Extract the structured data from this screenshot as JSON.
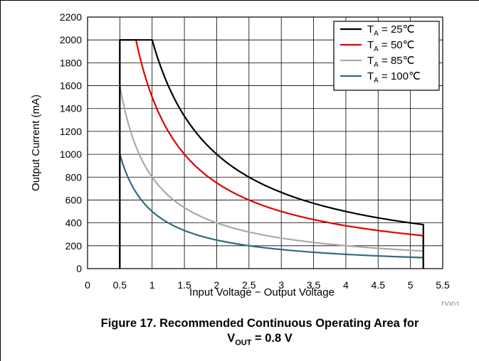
{
  "chart_data": {
    "type": "line",
    "xlabel": "Input Voltage − Output Voltage",
    "ylabel": "Output Current (mA)",
    "xlim": [
      0,
      5.5
    ],
    "ylim": [
      0,
      2200
    ],
    "x_ticks": [
      "0",
      "0.5",
      "1",
      "1.5",
      "2",
      "2.5",
      "3",
      "3.5",
      "4",
      "4.5",
      "5",
      "5.5"
    ],
    "y_ticks": [
      "0",
      "200",
      "400",
      "600",
      "800",
      "1000",
      "1200",
      "1400",
      "1600",
      "1800",
      "2000",
      "2200"
    ],
    "grid": true,
    "legend_position": "top-right",
    "series": [
      {
        "name": "25℃",
        "color": "#000000",
        "x": [
          0.5,
          0.5,
          1.0,
          1.25,
          1.5,
          2.0,
          2.5,
          3.0,
          3.5,
          4.0,
          4.5,
          5.0,
          5.2,
          5.2
        ],
        "y": [
          0,
          2000,
          2000,
          1600,
          1333,
          1000,
          800,
          667,
          571,
          500,
          444,
          400,
          385,
          0
        ]
      },
      {
        "name": "50℃",
        "color": "#e00000",
        "x": [
          0.5,
          0.5,
          0.75,
          1.0,
          1.5,
          2.0,
          2.5,
          3.0,
          3.5,
          4.0,
          4.5,
          5.0,
          5.2,
          5.2
        ],
        "y": [
          0,
          2000,
          2000,
          1500,
          1000,
          750,
          600,
          500,
          429,
          375,
          333,
          300,
          288,
          0
        ]
      },
      {
        "name": "85℃",
        "color": "#aaaaaa",
        "x": [
          0.5,
          0.5,
          0.75,
          1.0,
          1.5,
          2.0,
          2.5,
          3.0,
          3.5,
          4.0,
          4.5,
          5.0,
          5.2,
          5.2
        ],
        "y": [
          0,
          1600,
          1067,
          800,
          533,
          400,
          320,
          267,
          229,
          200,
          178,
          160,
          154,
          0
        ]
      },
      {
        "name": "100℃",
        "color": "#336b80",
        "x": [
          0.5,
          0.5,
          0.75,
          1.0,
          1.5,
          2.0,
          2.5,
          3.0,
          3.5,
          4.0,
          4.5,
          5.0,
          5.2,
          5.2
        ],
        "y": [
          0,
          1000,
          667,
          500,
          333,
          250,
          200,
          167,
          143,
          125,
          111,
          100,
          96,
          0
        ]
      }
    ],
    "legend_prefix": "T",
    "legend_subscript": "A",
    "legend_equals": " = ",
    "figure_id": "D001"
  },
  "caption": {
    "line1": "Figure 17. Recommended Continuous Operating Area for",
    "line2_prefix": "V",
    "line2_sub": "OUT",
    "line2_suffix": " = 0.8 V"
  }
}
